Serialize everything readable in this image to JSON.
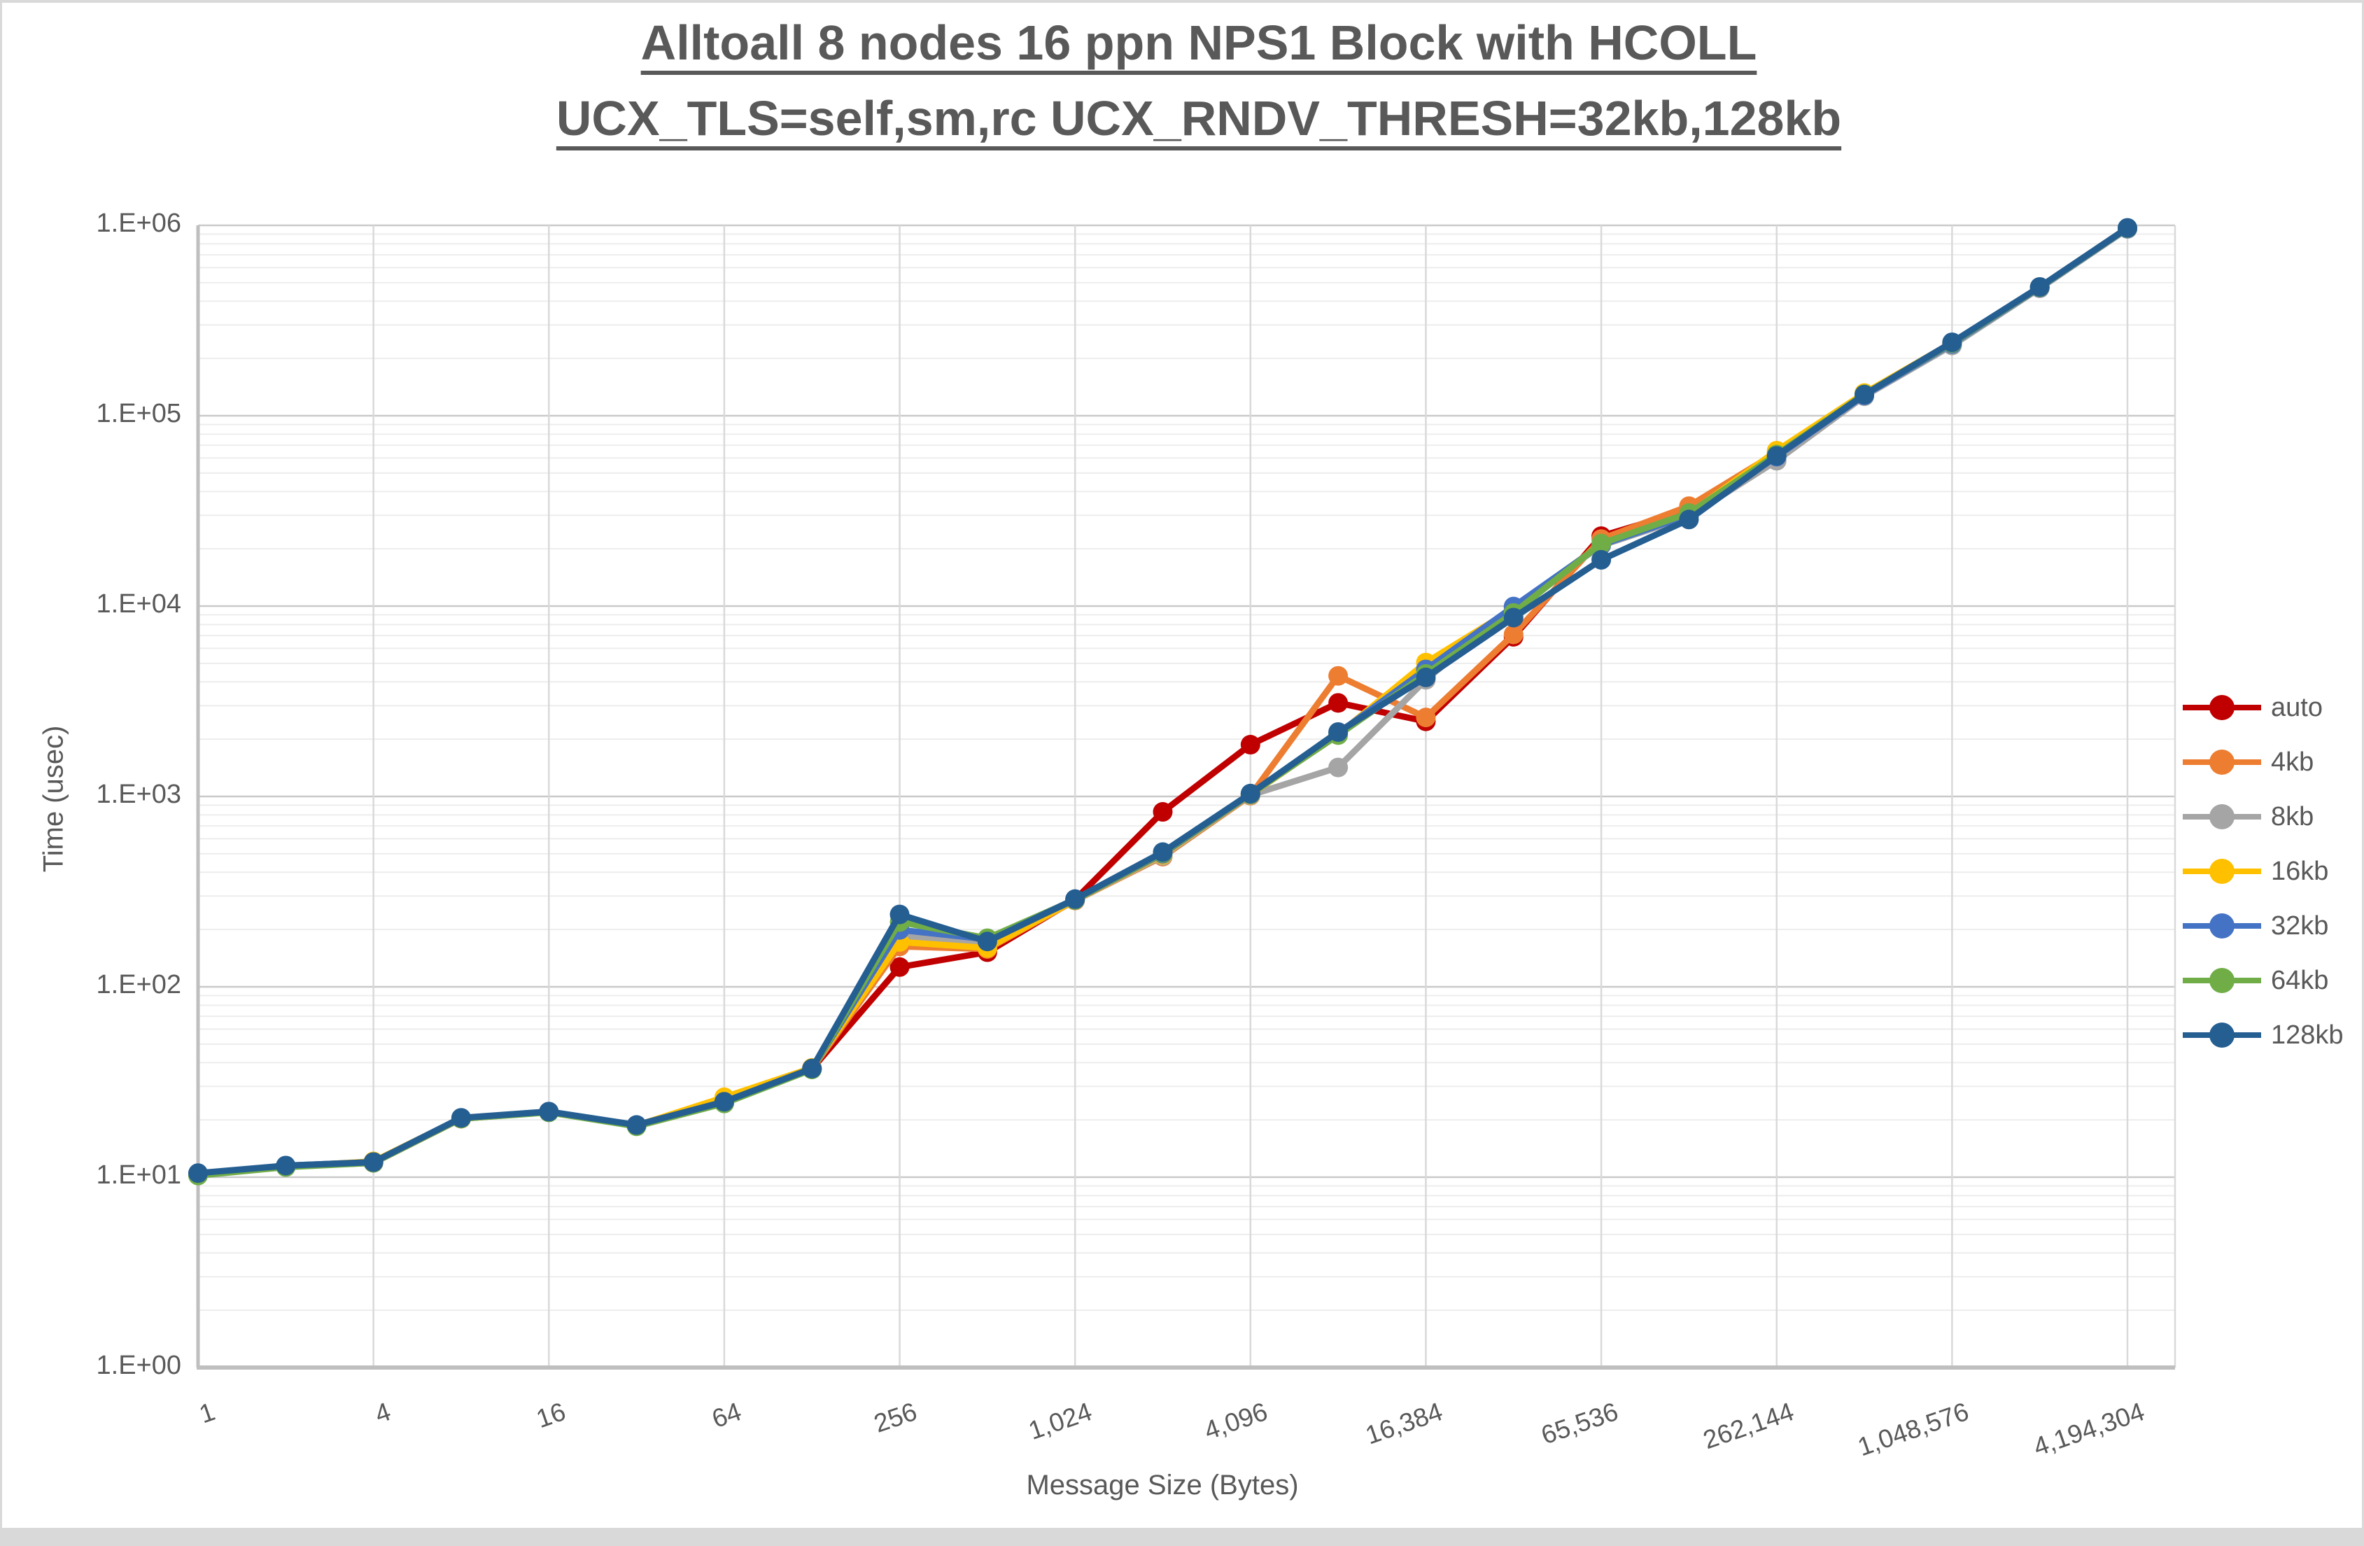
{
  "window": {
    "chrome_color": "#D9D9D9",
    "background": "#FFFFFF",
    "text_color": "#595959"
  },
  "chart_data": {
    "type": "line",
    "title_line1": "Alltoall 8 nodes 16 ppn NPS1 Block with HCOLL",
    "title_line2": "UCX_TLS=self,sm,rc UCX_RNDV_THRESH=32kb,128kb",
    "xlabel": "Message Size (Bytes)",
    "ylabel": "Time (usec)",
    "x_scale": "log2",
    "y_scale": "log10",
    "ylim": [
      1,
      1000000
    ],
    "grid": {
      "major": true,
      "minor": true
    },
    "legend_position": "right",
    "y_tick_labels": [
      "1.E+00",
      "1.E+01",
      "1.E+02",
      "1.E+03",
      "1.E+04",
      "1.E+05",
      "1.E+06"
    ],
    "x_values": [
      1,
      2,
      4,
      8,
      16,
      32,
      64,
      128,
      256,
      512,
      1024,
      2048,
      4096,
      8192,
      16384,
      32768,
      65536,
      131072,
      262144,
      524288,
      1048576,
      2097152,
      4194304
    ],
    "x_tick_labels": [
      {
        "label": "1",
        "step": 0
      },
      {
        "label": "4",
        "step": 2
      },
      {
        "label": "16",
        "step": 4
      },
      {
        "label": "64",
        "step": 6
      },
      {
        "label": "256",
        "step": 8
      },
      {
        "label": "1,024",
        "step": 10
      },
      {
        "label": "4,096",
        "step": 12
      },
      {
        "label": "16,384",
        "step": 14
      },
      {
        "label": "65,536",
        "step": 16
      },
      {
        "label": "262,144",
        "step": 18
      },
      {
        "label": "1,048,576",
        "step": 20
      },
      {
        "label": "4,194,304",
        "step": 22
      }
    ],
    "series": [
      {
        "name": "auto",
        "color": "#C00000",
        "values": [
          10.3,
          11.4,
          11.9,
          20.3,
          22,
          18.6,
          24.5,
          37,
          127,
          152,
          287,
          830,
          1870,
          3100,
          2480,
          6900,
          23300,
          32000,
          61500,
          128500,
          239000,
          470000,
          960000
        ]
      },
      {
        "name": "4kb",
        "color": "#ED7D31",
        "values": [
          10.4,
          11.4,
          11.9,
          20.3,
          22,
          18.6,
          24.5,
          37,
          163,
          158,
          284,
          483,
          1010,
          4300,
          2600,
          7100,
          22500,
          33500,
          64000,
          130000,
          237000,
          471000,
          963000
        ]
      },
      {
        "name": "8kb",
        "color": "#A5A5A5",
        "values": [
          10.4,
          11.4,
          11.9,
          20.4,
          22,
          18.6,
          24.5,
          37,
          185,
          170,
          285,
          488,
          1015,
          1420,
          4100,
          9900,
          20800,
          29500,
          58000,
          126500,
          234000,
          467000,
          958000
        ]
      },
      {
        "name": "16kb",
        "color": "#FFC000",
        "values": [
          10.4,
          11.4,
          12.1,
          20.4,
          22,
          18.7,
          26.3,
          37.5,
          172,
          160,
          285,
          494,
          1020,
          2120,
          5050,
          9700,
          21200,
          30500,
          65500,
          131500,
          242000,
          474000,
          968000
        ]
      },
      {
        "name": "32kb",
        "color": "#4472C4",
        "values": [
          10.4,
          11.5,
          12,
          20.4,
          22.1,
          18.7,
          24.8,
          37,
          199,
          178,
          286,
          500,
          1025,
          2150,
          4650,
          9950,
          21000,
          30000,
          61000,
          128000,
          238500,
          471500,
          963500
        ]
      },
      {
        "name": "64kb",
        "color": "#70AD47",
        "values": [
          10.2,
          11.3,
          11.9,
          20.3,
          21.9,
          18.5,
          24.4,
          36.8,
          219,
          180,
          287,
          505,
          1030,
          2100,
          4400,
          9200,
          21300,
          30800,
          62500,
          129500,
          241000,
          473000,
          967000
        ]
      },
      {
        "name": "128kb",
        "color": "#255E91",
        "values": [
          10.5,
          11.5,
          12,
          20.5,
          22.1,
          18.8,
          24.9,
          37.2,
          240,
          173,
          289,
          510,
          1035,
          2180,
          4220,
          8700,
          17500,
          28500,
          61500,
          129000,
          243000,
          475000,
          970000
        ]
      }
    ]
  }
}
